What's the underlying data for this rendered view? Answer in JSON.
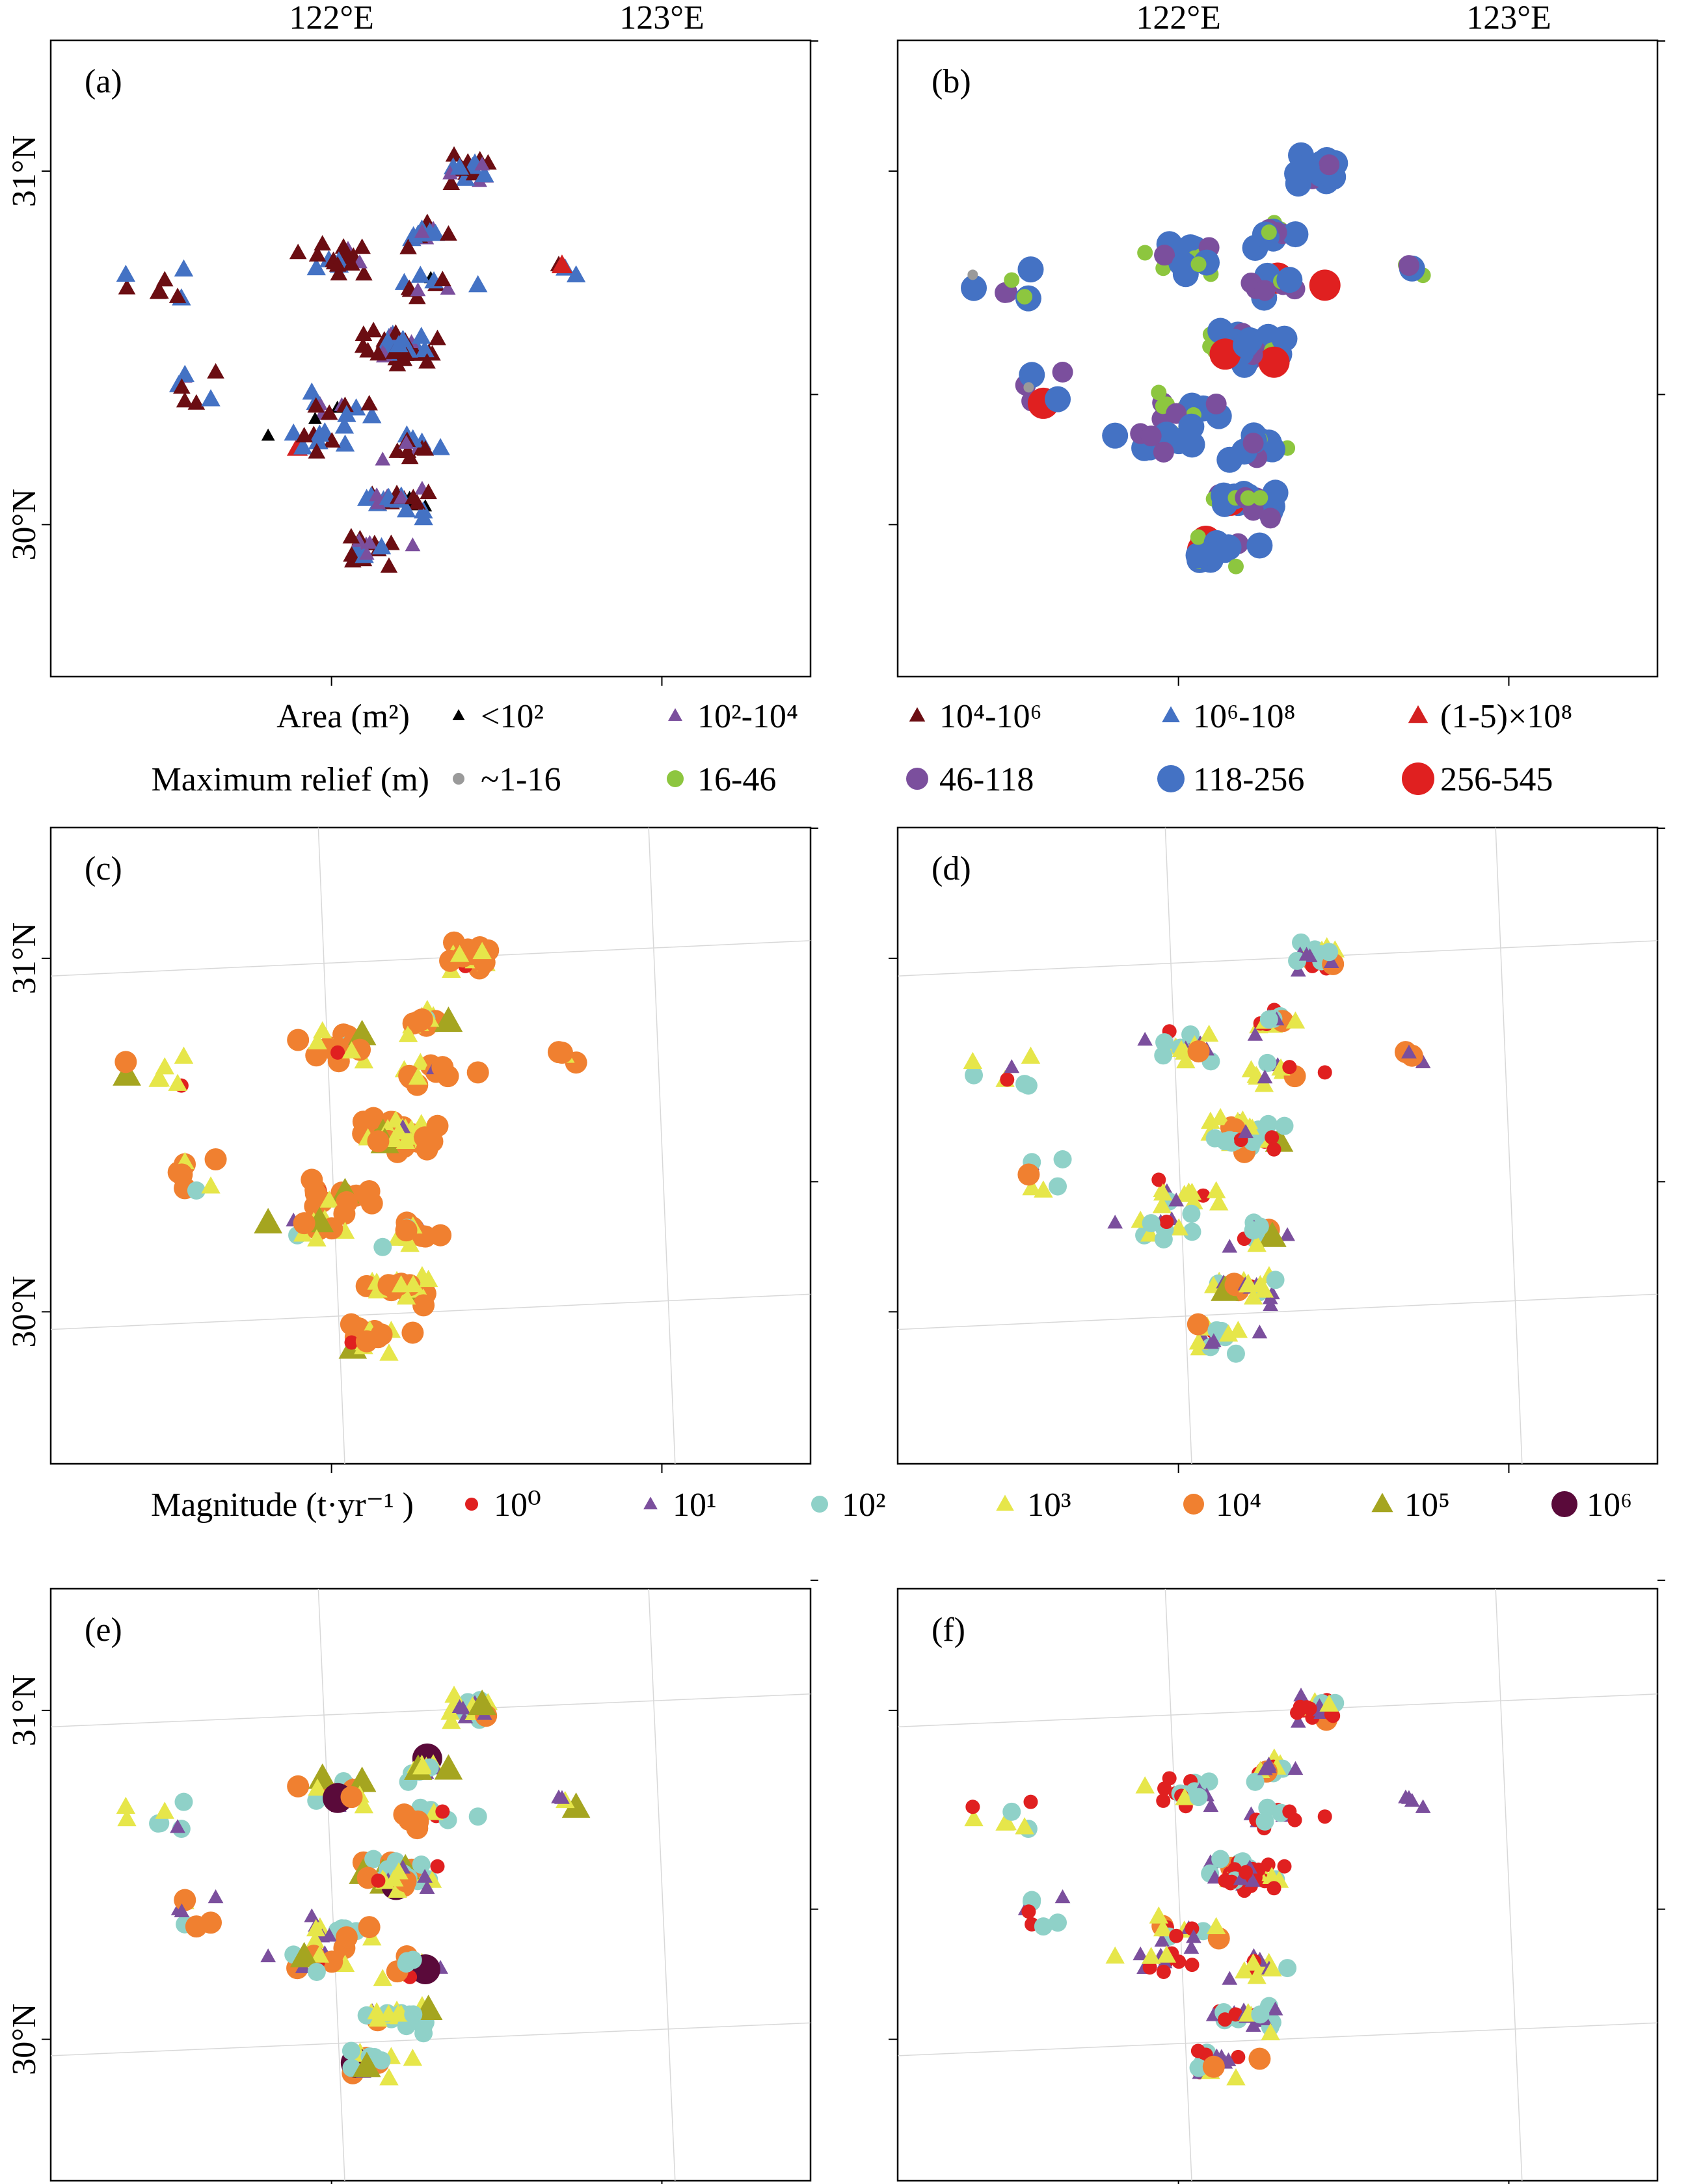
{
  "axes": {
    "lon_ticks": [
      "122°E",
      "123°E"
    ],
    "lat_ticks": [
      "31°N",
      "30°N"
    ]
  },
  "legends": {
    "area": {
      "title": "Area (m²)",
      "items": [
        {
          "label": "<10²",
          "marker": "triangle",
          "color": "#000000"
        },
        {
          "label": "10²-10⁴",
          "marker": "triangle",
          "color": "#7b4f9d"
        },
        {
          "label": "10⁴-10⁶",
          "marker": "triangle",
          "color": "#6b0d12"
        },
        {
          "label": "10⁶-10⁸",
          "marker": "triangle",
          "color": "#4472c4"
        },
        {
          "label": "(1-5)×10⁸",
          "marker": "triangle",
          "color": "#d42020"
        }
      ]
    },
    "relief": {
      "title": "Maximum relief (m)",
      "items": [
        {
          "label": "~1-16",
          "marker": "circle",
          "color": "#9a9a9a"
        },
        {
          "label": "16-46",
          "marker": "circle",
          "color": "#8dc63f"
        },
        {
          "label": "46-118",
          "marker": "circle",
          "color": "#7b4f9d"
        },
        {
          "label": "118-256",
          "marker": "circle",
          "color": "#4472c4"
        },
        {
          "label": "256-545",
          "marker": "circle",
          "color": "#e02020"
        }
      ]
    },
    "magnitude": {
      "title": "Magnitude (t·yr⁻¹ )",
      "items": [
        {
          "label": "10⁰",
          "marker": "circle",
          "color": "#e02020"
        },
        {
          "label": "10¹",
          "marker": "triangle",
          "color": "#7b4f9d"
        },
        {
          "label": "10²",
          "marker": "circle",
          "color": "#8fd1c8"
        },
        {
          "label": "10³",
          "marker": "triangle",
          "color": "#e6e64a"
        },
        {
          "label": "10⁴",
          "marker": "circle",
          "color": "#f08030"
        },
        {
          "label": "10⁵",
          "marker": "triangle",
          "color": "#a5a520"
        },
        {
          "label": "10⁶",
          "marker": "circle",
          "color": "#5a0a3a"
        }
      ]
    }
  },
  "panels": [
    {
      "id": "a",
      "label": "(a)",
      "legend": "area"
    },
    {
      "id": "b",
      "label": "(b)",
      "legend": "relief"
    },
    {
      "id": "c",
      "label": "(c)",
      "legend": "magnitude"
    },
    {
      "id": "d",
      "label": "(d)",
      "legend": "magnitude"
    },
    {
      "id": "e",
      "label": "(e)",
      "legend": "magnitude"
    },
    {
      "id": "f",
      "label": "(f)",
      "legend": "magnitude"
    }
  ],
  "chart_data": {
    "type": "scatter",
    "coordinate_system": "longitude / latitude",
    "x_unit": "°E",
    "y_unit": "°N",
    "xlim": [
      121.15,
      123.45
    ],
    "ylim": [
      29.57,
      31.37
    ],
    "clusters": [
      {
        "lon": 122.28,
        "lat": 30.82,
        "count": 14
      },
      {
        "lon": 122.42,
        "lat": 31.0,
        "count": 22
      },
      {
        "lon": 122.0,
        "lat": 30.75,
        "count": 20
      },
      {
        "lon": 121.5,
        "lat": 30.68,
        "count": 8
      },
      {
        "lon": 122.3,
        "lat": 30.68,
        "count": 12
      },
      {
        "lon": 122.2,
        "lat": 30.5,
        "count": 50
      },
      {
        "lon": 121.6,
        "lat": 30.4,
        "count": 8
      },
      {
        "lon": 122.0,
        "lat": 30.34,
        "count": 14
      },
      {
        "lon": 121.93,
        "lat": 30.24,
        "count": 14
      },
      {
        "lon": 122.25,
        "lat": 30.22,
        "count": 14
      },
      {
        "lon": 122.2,
        "lat": 30.07,
        "count": 26
      },
      {
        "lon": 122.12,
        "lat": 29.93,
        "count": 18
      },
      {
        "lon": 122.75,
        "lat": 30.72,
        "count": 4
      }
    ]
  }
}
